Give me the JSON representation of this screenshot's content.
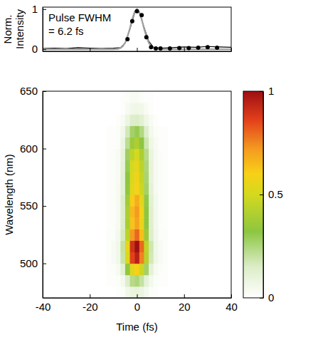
{
  "chart_data": [
    {
      "type": "line",
      "ylabel": "Norm. Intensity",
      "annotations": [
        "Pulse FWHM",
        "= 6.2 fs"
      ],
      "xlim": [
        -40,
        40
      ],
      "xticks": [
        -40,
        -20,
        0,
        20,
        40
      ],
      "ylim": [
        -0.05,
        1.05
      ],
      "yticks": [
        0,
        1
      ],
      "tick_labels": "y",
      "series": [
        {
          "type": "line",
          "color": "#000000",
          "x": [
            -40,
            -35,
            -30,
            -25,
            -20,
            -15,
            -10,
            -7,
            -5,
            -3,
            -1,
            0,
            1,
            3,
            5,
            7,
            10,
            15,
            20,
            25,
            30,
            35,
            40
          ],
          "values": [
            0.02,
            0.03,
            0.02,
            0.04,
            0.03,
            0.02,
            0.03,
            0.04,
            0.15,
            0.5,
            0.9,
            1,
            0.92,
            0.55,
            0.2,
            0.05,
            0.03,
            0.04,
            0.06,
            0.05,
            0.07,
            0.06,
            0.05
          ]
        },
        {
          "type": "line",
          "color": "#a0a0a0",
          "x": [
            -40,
            -30,
            -20,
            -10,
            -8,
            -7,
            -6,
            -5,
            -4,
            -3,
            -2,
            -1,
            0,
            1,
            2,
            3,
            4,
            5,
            6,
            7,
            8,
            10,
            20,
            30,
            40
          ],
          "values": [
            0,
            0,
            0,
            0,
            0.01,
            0.03,
            0.075,
            0.165,
            0.32,
            0.52,
            0.75,
            0.93,
            1,
            0.93,
            0.75,
            0.52,
            0.32,
            0.165,
            0.075,
            0.03,
            0.01,
            0,
            0,
            0,
            0
          ]
        },
        {
          "type": "scatter",
          "color": "#000000",
          "marker": "circle",
          "x": [
            -4,
            -2,
            0,
            2,
            4,
            6,
            8,
            10,
            14,
            18,
            22,
            26,
            30,
            34
          ],
          "values": [
            0.25,
            0.7,
            0.95,
            0.85,
            0.3,
            0.05,
            0.02,
            0.02,
            0.02,
            0.03,
            0.03,
            0.04,
            0.05,
            0.04
          ]
        }
      ]
    },
    {
      "type": "heatmap",
      "xlabel": "Time (fs)",
      "ylabel": "Wavelength (nm)",
      "xlim": [
        -40,
        40
      ],
      "xticks": [
        -40,
        -20,
        0,
        20,
        40
      ],
      "ylim": [
        470,
        650
      ],
      "yticks": [
        500,
        550,
        600,
        650
      ],
      "x": [
        -12,
        -10,
        -8,
        -6,
        -4,
        -2,
        0,
        2,
        4,
        6,
        8,
        10,
        12
      ],
      "y": [
        475,
        485,
        495,
        505,
        515,
        525,
        535,
        545,
        555,
        565,
        575,
        585,
        595,
        605,
        615,
        625,
        635,
        645
      ],
      "z": [
        [
          0,
          0,
          0.01,
          0.02,
          0.06,
          0.09,
          0.1,
          0.08,
          0.05,
          0.02,
          0.01,
          0,
          0
        ],
        [
          0.01,
          0.01,
          0.02,
          0.05,
          0.14,
          0.23,
          0.25,
          0.2,
          0.11,
          0.05,
          0.02,
          0.01,
          0.01
        ],
        [
          0.01,
          0.02,
          0.04,
          0.12,
          0.33,
          0.54,
          0.6,
          0.48,
          0.27,
          0.11,
          0.04,
          0.02,
          0.01
        ],
        [
          0.02,
          0.03,
          0.06,
          0.19,
          0.52,
          0.86,
          0.95,
          0.76,
          0.43,
          0.17,
          0.07,
          0.03,
          0.02
        ],
        [
          0.02,
          0.03,
          0.06,
          0.2,
          0.55,
          0.9,
          1,
          0.8,
          0.45,
          0.18,
          0.07,
          0.03,
          0.02
        ],
        [
          0.02,
          0.02,
          0.05,
          0.16,
          0.44,
          0.72,
          0.8,
          0.64,
          0.36,
          0.14,
          0.06,
          0.02,
          0.02
        ],
        [
          0.01,
          0.02,
          0.04,
          0.14,
          0.39,
          0.63,
          0.7,
          0.56,
          0.32,
          0.13,
          0.05,
          0.02,
          0.01
        ],
        [
          0.01,
          0.02,
          0.04,
          0.14,
          0.4,
          0.65,
          0.72,
          0.58,
          0.32,
          0.13,
          0.05,
          0.02,
          0.01
        ],
        [
          0.01,
          0.02,
          0.04,
          0.14,
          0.37,
          0.61,
          0.68,
          0.54,
          0.31,
          0.12,
          0.05,
          0.02,
          0.01
        ],
        [
          0.01,
          0.02,
          0.04,
          0.12,
          0.33,
          0.54,
          0.6,
          0.48,
          0.27,
          0.11,
          0.04,
          0.02,
          0.01
        ],
        [
          0.01,
          0.02,
          0.03,
          0.12,
          0.32,
          0.52,
          0.58,
          0.46,
          0.26,
          0.1,
          0.04,
          0.02,
          0.01
        ],
        [
          0.01,
          0.02,
          0.03,
          0.11,
          0.3,
          0.5,
          0.55,
          0.44,
          0.25,
          0.1,
          0.04,
          0.02,
          0.01
        ],
        [
          0.01,
          0.02,
          0.03,
          0.1,
          0.28,
          0.45,
          0.5,
          0.4,
          0.23,
          0.09,
          0.04,
          0.02,
          0.01
        ],
        [
          0.01,
          0.01,
          0.02,
          0.08,
          0.22,
          0.36,
          0.4,
          0.32,
          0.18,
          0.07,
          0.03,
          0.01,
          0.01
        ],
        [
          0.01,
          0.01,
          0.02,
          0.06,
          0.17,
          0.27,
          0.3,
          0.24,
          0.14,
          0.05,
          0.02,
          0.01,
          0.01
        ],
        [
          0,
          0,
          0.01,
          0.03,
          0.08,
          0.14,
          0.15,
          0.12,
          0.07,
          0.03,
          0.01,
          0,
          0
        ],
        [
          0,
          0,
          0,
          0.01,
          0.04,
          0.06,
          0.07,
          0.06,
          0.03,
          0.01,
          0,
          0,
          0
        ],
        [
          0,
          0,
          0,
          0.01,
          0.02,
          0.03,
          0.03,
          0.02,
          0.01,
          0.01,
          0,
          0,
          0
        ]
      ],
      "colorbar": {
        "range": [
          0,
          1
        ],
        "ticks": [
          0,
          0.5,
          1
        ]
      }
    }
  ]
}
